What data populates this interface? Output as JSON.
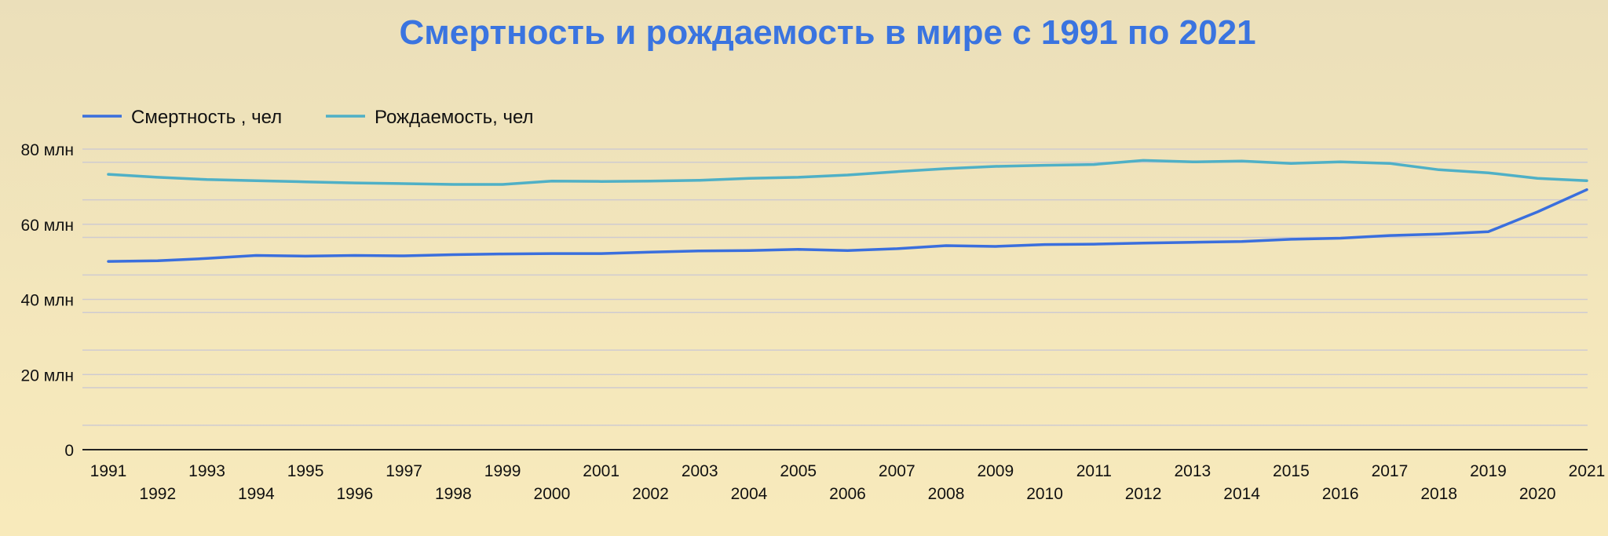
{
  "chart_data": {
    "type": "line",
    "title": "Смертность и рождаемость в мире с 1991 по 2021",
    "xlabel": "",
    "ylabel": "",
    "ylim": [
      0,
      80
    ],
    "y_ticks": [
      0,
      20,
      40,
      60,
      80
    ],
    "y_tick_labels": [
      "0",
      "20 млн",
      "40 млн",
      "60 млн",
      "80 млн"
    ],
    "grid": true,
    "legend_position": "top-left",
    "x": [
      1991,
      1992,
      1993,
      1994,
      1995,
      1996,
      1997,
      1998,
      1999,
      2000,
      2001,
      2002,
      2003,
      2004,
      2005,
      2006,
      2007,
      2008,
      2009,
      2010,
      2011,
      2012,
      2013,
      2014,
      2015,
      2016,
      2017,
      2018,
      2019,
      2020,
      2021
    ],
    "series": [
      {
        "name": "Смертность , чел",
        "color": "#3a6fdd",
        "values": [
          50.1,
          50.3,
          50.9,
          51.7,
          51.5,
          51.7,
          51.6,
          51.9,
          52.1,
          52.2,
          52.2,
          52.6,
          52.9,
          53.0,
          53.3,
          53.0,
          53.5,
          54.3,
          54.1,
          54.6,
          54.7,
          55.0,
          55.2,
          55.4,
          56.0,
          56.3,
          57.0,
          57.4,
          58.0,
          63.3,
          69.2
        ]
      },
      {
        "name": "Рождаемость, чел",
        "color": "#4fb0c6",
        "values": [
          73.3,
          72.5,
          71.9,
          71.6,
          71.3,
          71.0,
          70.8,
          70.6,
          70.6,
          71.5,
          71.4,
          71.5,
          71.7,
          72.2,
          72.5,
          73.1,
          74.0,
          74.8,
          75.4,
          75.7,
          75.9,
          77.0,
          76.6,
          76.8,
          76.2,
          76.6,
          76.2,
          74.5,
          73.7,
          72.2,
          71.6
        ]
      }
    ]
  }
}
